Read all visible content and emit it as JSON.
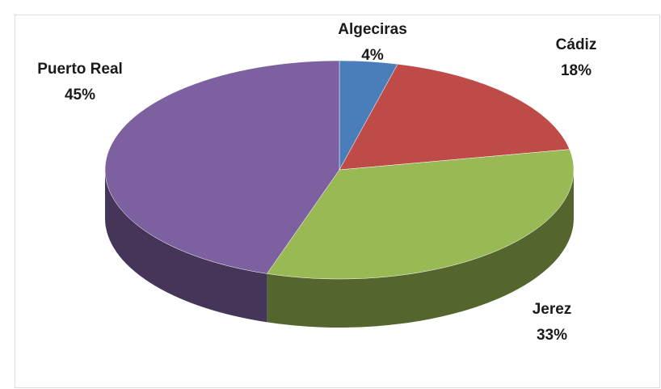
{
  "chart_data": {
    "type": "pie",
    "categories": [
      "Algeciras",
      "Cádiz",
      "Jerez",
      "Puerto Real"
    ],
    "values": [
      4,
      18,
      33,
      45
    ],
    "value_labels": [
      "4%",
      "18%",
      "33%",
      "45%"
    ],
    "colors": [
      "#4a7ebb",
      "#be4b48",
      "#98b954",
      "#7d60a0"
    ]
  }
}
